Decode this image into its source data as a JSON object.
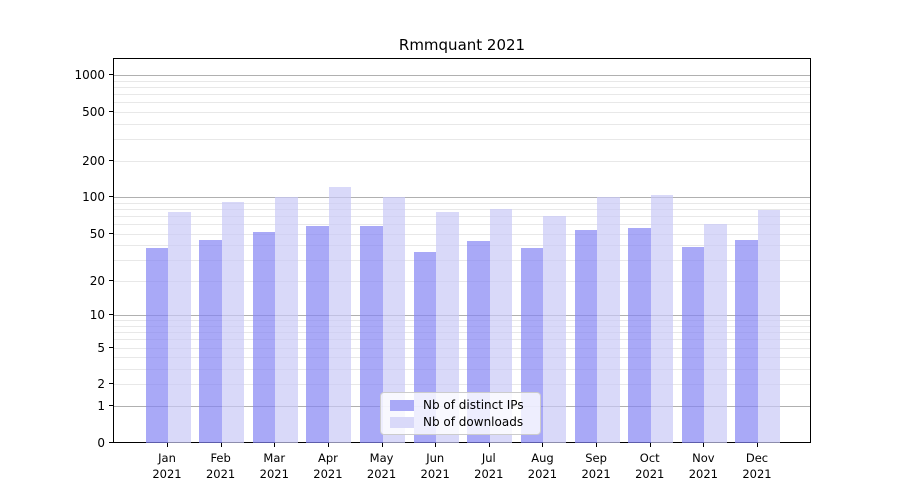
{
  "title": "Rmmquant 2021",
  "legend": {
    "items": [
      {
        "label": "Nb of distinct IPs"
      },
      {
        "label": "Nb of downloads"
      }
    ]
  },
  "chart_data": {
    "type": "bar",
    "title": "Rmmquant 2021",
    "xlabel": "",
    "ylabel": "",
    "x_year": "2021",
    "categories": [
      "Jan",
      "Feb",
      "Mar",
      "Apr",
      "May",
      "Jun",
      "Jul",
      "Aug",
      "Sep",
      "Oct",
      "Nov",
      "Dec"
    ],
    "series": [
      {
        "name": "Nb of distinct IPs",
        "color": "rgba(132,132,244,0.7)",
        "solid_color": "#a9a9f7",
        "values": [
          38,
          44,
          52,
          58,
          58,
          35,
          43,
          38,
          54,
          56,
          39,
          44
        ]
      },
      {
        "name": "Nb of downloads",
        "color": "rgba(201,201,246,0.7)",
        "solid_color": "#d9d9f9",
        "values": [
          75,
          92,
          100,
          122,
          100,
          75,
          80,
          70,
          100,
          105,
          60,
          78
        ]
      }
    ],
    "yscale": "log1p",
    "ylim": [
      0,
      1350
    ],
    "yticks": [
      0,
      1,
      2,
      5,
      10,
      20,
      50,
      100,
      200,
      500,
      1000
    ],
    "ytick_labels": [
      "0",
      "1",
      "2",
      "5",
      "10",
      "20",
      "50",
      "100",
      "200",
      "500",
      "1000"
    ],
    "grid": "on",
    "grid_major_color": "#b0b0b0",
    "grid_minor_color": "#e8e8e8",
    "legend_position": "lower-center"
  }
}
